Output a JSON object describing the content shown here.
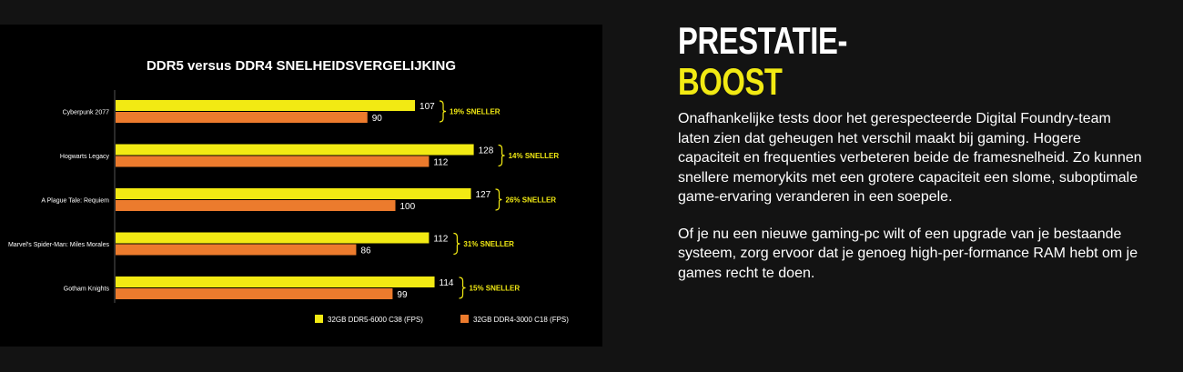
{
  "chart_data": {
    "type": "bar",
    "orientation": "horizontal",
    "title": "DDR5 versus DDR4 SNELHEIDSVERGELIJKING",
    "categories": [
      "Cyberpunk 2077",
      "Hogwarts Legacy",
      "A Plague Tale: Requiem",
      "Marvel's Spider-Man: Miles Morales",
      "Gotham Knights"
    ],
    "series": [
      {
        "name": "32GB DDR5-6000 C38 (FPS)",
        "color": "#f2ea13",
        "values": [
          107,
          128,
          127,
          112,
          114
        ]
      },
      {
        "name": "32GB DDR4-3000 C18 (FPS)",
        "color": "#ec7b2d",
        "values": [
          90,
          112,
          100,
          86,
          99
        ]
      }
    ],
    "differences": [
      "19% SNELLER",
      "14% SNELLER",
      "26% SNELLER",
      "31% SNELLER",
      "15% SNELLER"
    ],
    "xlim": [
      0,
      160
    ],
    "grid": false,
    "legend": "bottom-right"
  },
  "text": {
    "heading_line1": "PRESTATIE-",
    "heading_line2": "BOOST",
    "paragraphs": [
      "Onafhankelijke tests door het gerespecteerde Digital Foundry-team laten zien dat geheugen het verschil maakt bij gaming. Hogere capaciteit en frequenties verbeteren beide de framesnelheid. Zo kunnen snellere memorykits met een grotere capaciteit een slome, suboptimale game-ervaring veranderen in een soepele.",
      "Of je nu een nieuwe gaming-pc wilt of een upgrade van je bestaande systeem, zorg ervoor dat je genoeg high-per-formance RAM hebt om je games recht te doen."
    ]
  }
}
